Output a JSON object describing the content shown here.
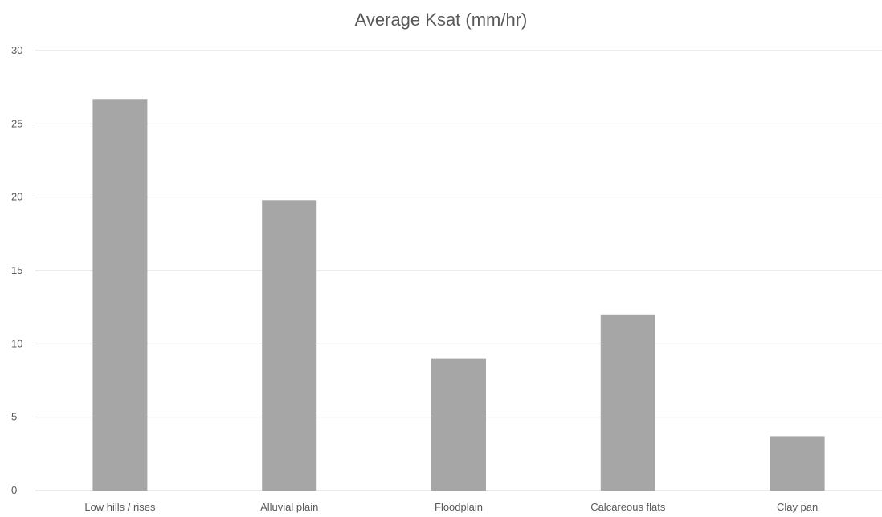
{
  "chart_data": {
    "type": "bar",
    "title": "Average Ksat (mm/hr)",
    "categories": [
      "Low hills / rises",
      "Alluvial plain",
      "Floodplain",
      "Calcareous flats",
      "Clay pan"
    ],
    "values": [
      26.7,
      19.8,
      9.0,
      12.0,
      3.7
    ],
    "xlabel": "",
    "ylabel": "",
    "ylim": [
      0,
      30
    ],
    "yticks": [
      "0",
      "5",
      "10",
      "15",
      "20",
      "25",
      "30"
    ],
    "grid": true,
    "legend": "none",
    "bar_color": "#a6a6a6",
    "grid_color": "#d9d9d9"
  }
}
